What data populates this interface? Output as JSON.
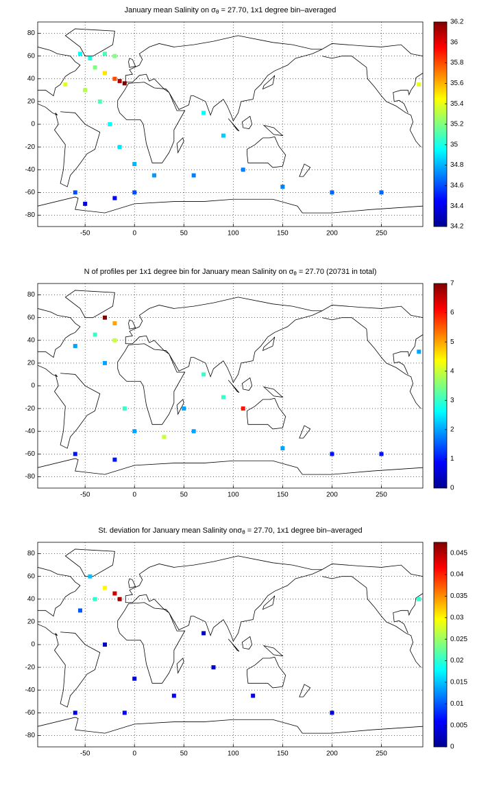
{
  "chart_data": [
    {
      "type": "map",
      "title": [
        "January mean Salinity on σ",
        "θ",
        " = 27.70, 1x1 degree bin–averaged"
      ],
      "x": [
        -15,
        -10,
        -20,
        -30,
        -40,
        -45,
        -55,
        -30,
        -20,
        -70,
        -50,
        -35,
        -25,
        -15,
        0,
        20,
        60,
        70,
        90,
        110,
        150,
        200,
        250,
        -60,
        -20,
        -50,
        288,
        0
      ],
      "y": [
        38,
        36,
        40,
        45,
        50,
        58,
        62,
        62,
        60,
        35,
        30,
        20,
        0,
        -20,
        -35,
        -45,
        -45,
        10,
        -10,
        -40,
        -55,
        -60,
        -60,
        -60,
        -65,
        -70,
        35,
        -60
      ],
      "values": [
        36.1,
        36.2,
        35.8,
        35.5,
        35.2,
        35.0,
        34.95,
        35.1,
        35.2,
        35.4,
        35.3,
        35.1,
        34.95,
        34.9,
        34.8,
        34.75,
        34.7,
        34.95,
        34.85,
        34.7,
        34.7,
        34.65,
        34.65,
        34.6,
        34.45,
        34.4,
        35.4,
        34.6
      ],
      "xlim": [
        -98,
        292
      ],
      "ylim": [
        -90,
        90
      ],
      "xticks": [
        -50,
        0,
        50,
        100,
        150,
        200,
        250
      ],
      "yticks": [
        -80,
        -60,
        -40,
        -20,
        0,
        20,
        40,
        60,
        80
      ],
      "clim": [
        34.2,
        36.2
      ],
      "cticks": [
        34.2,
        34.4,
        34.6,
        34.8,
        35,
        35.2,
        35.4,
        35.6,
        35.8,
        36,
        36.2
      ],
      "colormap": "jet",
      "grid": true
    },
    {
      "type": "map",
      "title": [
        "N of profiles per 1x1 degree bin for January mean Salinity on σ",
        "θ",
        " = 27.70 (20731 in total)"
      ],
      "x": [
        -30,
        -20,
        -40,
        -60,
        -30,
        -10,
        0,
        30,
        70,
        110,
        90,
        60,
        150,
        200,
        250,
        -60,
        -20,
        288,
        -20,
        50
      ],
      "y": [
        60,
        55,
        45,
        35,
        20,
        -20,
        -40,
        -45,
        10,
        -20,
        -10,
        -40,
        -55,
        -60,
        -60,
        -60,
        -65,
        30,
        40,
        -20
      ],
      "values": [
        7,
        5,
        3,
        2,
        2,
        3,
        2,
        4,
        3,
        6,
        3,
        2,
        2,
        1,
        1,
        1,
        1,
        2,
        4,
        2
      ],
      "xlim": [
        -98,
        292
      ],
      "ylim": [
        -90,
        90
      ],
      "xticks": [
        -50,
        0,
        50,
        100,
        150,
        200,
        250
      ],
      "yticks": [
        -80,
        -60,
        -40,
        -20,
        0,
        20,
        40,
        60,
        80
      ],
      "clim": [
        0,
        7
      ],
      "cticks": [
        0,
        1,
        2,
        3,
        4,
        5,
        6,
        7
      ],
      "colormap": "jet",
      "grid": true
    },
    {
      "type": "map",
      "title": [
        "St. deviation for January mean Salinity on",
        "σ",
        "θ",
        " = 27.70, 1x1 degree bin–averaged"
      ],
      "x": [
        -15,
        -20,
        -30,
        -40,
        -55,
        -45,
        -30,
        0,
        40,
        80,
        70,
        120,
        200,
        -60,
        288,
        -10
      ],
      "y": [
        40,
        45,
        50,
        40,
        30,
        60,
        0,
        -30,
        -45,
        -20,
        10,
        -45,
        -60,
        -60,
        40,
        -60
      ],
      "values": [
        0.046,
        0.044,
        0.03,
        0.02,
        0.01,
        0.015,
        0.003,
        0.004,
        0.006,
        0.004,
        0.003,
        0.005,
        0.004,
        0.005,
        0.02,
        0.006
      ],
      "xlim": [
        -98,
        292
      ],
      "ylim": [
        -90,
        90
      ],
      "xticks": [
        -50,
        0,
        50,
        100,
        150,
        200,
        250
      ],
      "yticks": [
        -80,
        -60,
        -40,
        -20,
        0,
        20,
        40,
        60,
        80
      ],
      "clim": [
        0,
        0.0475
      ],
      "cticks": [
        0,
        0.005,
        0.01,
        0.015,
        0.02,
        0.025,
        0.03,
        0.035,
        0.04,
        0.045
      ],
      "colormap": "jet",
      "grid": true
    }
  ]
}
